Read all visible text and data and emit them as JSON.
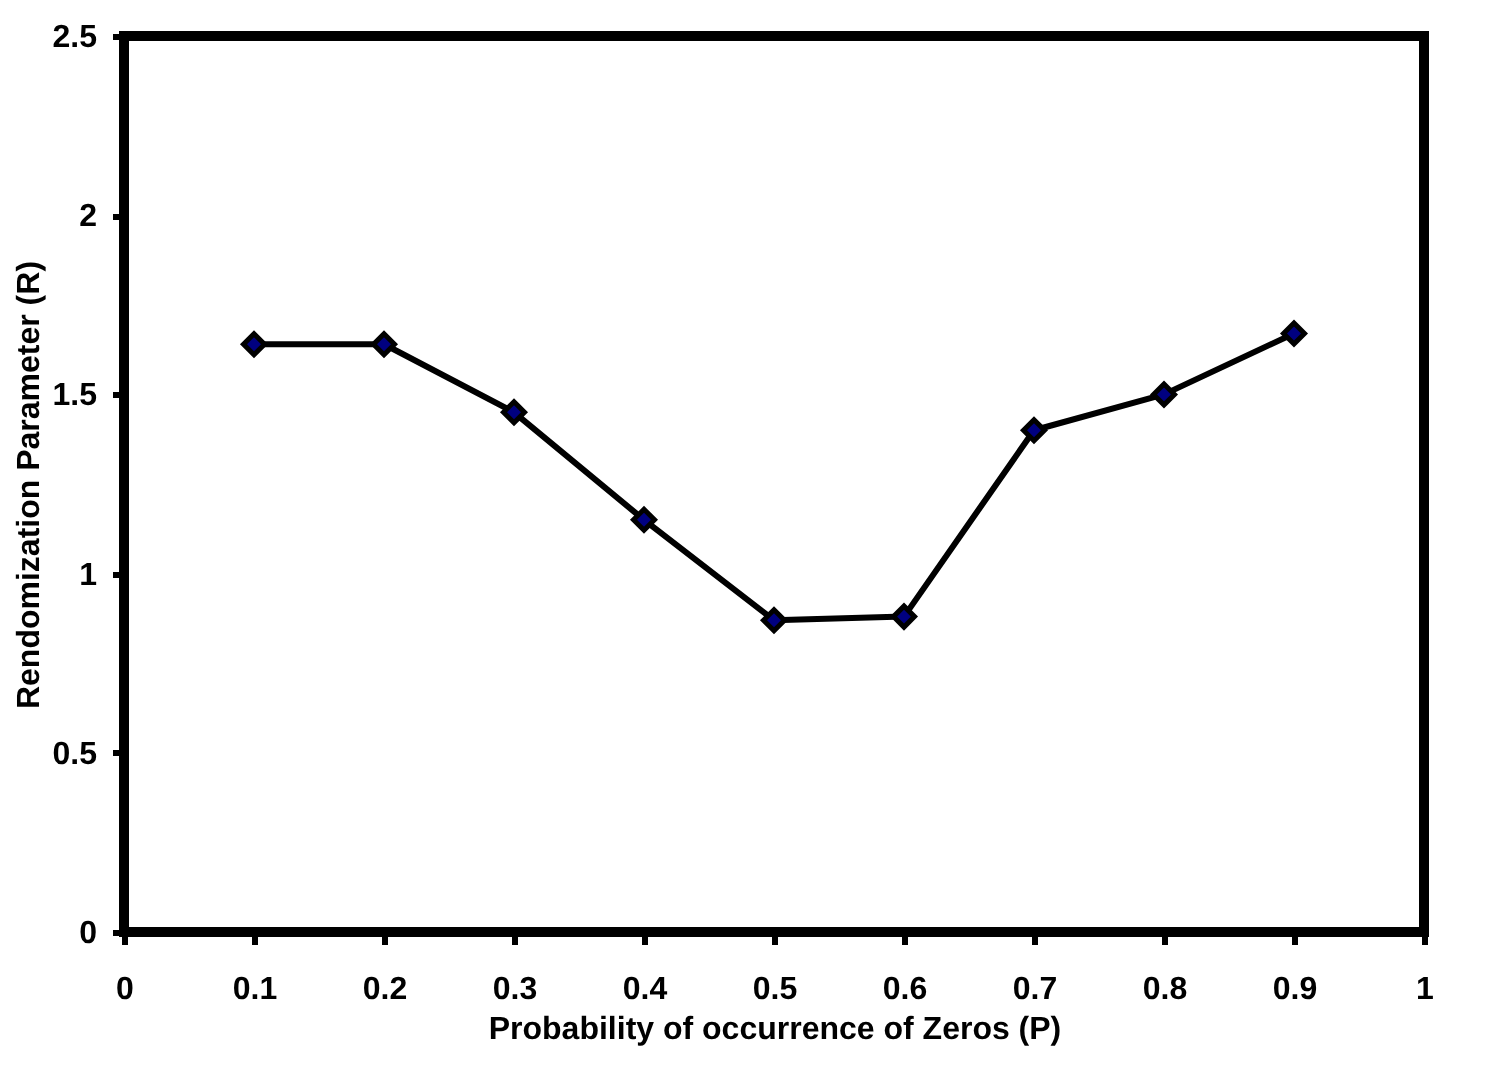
{
  "chart_data": {
    "type": "line",
    "xlabel": "Probability of occurrence of Zeros (P)",
    "ylabel": "Rendomization Parameter (R)",
    "x": [
      0.1,
      0.2,
      0.3,
      0.4,
      0.5,
      0.6,
      0.7,
      0.8,
      0.9
    ],
    "series": [
      {
        "color": "#000000",
        "values": [
          1.64,
          1.64,
          1.45,
          1.15,
          0.87,
          0.88,
          1.4,
          1.5,
          1.67
        ]
      }
    ],
    "marker": "diamond",
    "line_style": "solid",
    "grid": false,
    "xlim": [
      0,
      1
    ],
    "xticks": [
      0,
      0.1,
      0.2,
      0.3,
      0.4,
      0.5,
      0.6,
      0.7,
      0.8,
      0.9,
      1
    ],
    "ylim": [
      0,
      2.5
    ],
    "yticks": [
      0,
      0.5,
      1,
      1.5,
      2,
      2.5
    ]
  }
}
